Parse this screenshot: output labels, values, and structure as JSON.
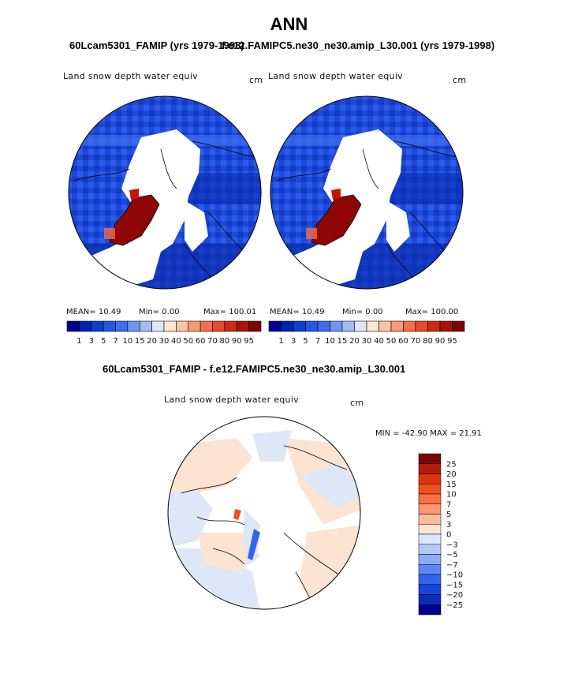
{
  "title": "ANN",
  "panels": [
    {
      "subtitle": "60Lcam5301_FAMIP (yrs 1979-1998)",
      "variable": "Land snow depth water equiv",
      "units": "cm",
      "mean": "MEAN=  10.49",
      "min": "Min=    0.00",
      "max": "Max= 100.01"
    },
    {
      "subtitle": "f.e12.FAMIPC5.ne30_ne30.amip_L30.001 (yrs 1979-1998)",
      "variable": "Land snow depth water equiv",
      "units": "cm",
      "mean": "MEAN=  10.49",
      "min": "Min=    0.00",
      "max": "Max= 100.00"
    }
  ],
  "diff_panel": {
    "subtitle": "60Lcam5301_FAMIP - f.e12.FAMIPC5.ne30_ne30.amip_L30.001",
    "variable": "Land snow depth water equiv",
    "units": "cm",
    "minmax": "MIN = -42.90 MAX =  21.91"
  },
  "colorbar_main": {
    "labels": [
      "1",
      "3",
      "5",
      "7",
      "10",
      "15",
      "20",
      "30",
      "40",
      "50",
      "60",
      "70",
      "80",
      "90",
      "95"
    ],
    "colors": [
      "#00008f",
      "#0022b0",
      "#0a3fd0",
      "#2357e6",
      "#3c6ef0",
      "#6e95f2",
      "#a4bcf5",
      "#dde7f8",
      "#fde6d6",
      "#fbc3a6",
      "#f89a72",
      "#f3704a",
      "#e84a2c",
      "#cf2a15",
      "#aa1408",
      "#7d0404"
    ]
  },
  "colorbar_diff": {
    "labels": [
      "25",
      "20",
      "15",
      "10",
      "7",
      "5",
      "3",
      "0",
      "−3",
      "−5",
      "−7",
      "−10",
      "−15",
      "−20",
      "−25"
    ],
    "colors": [
      "#7d0404",
      "#b51a0b",
      "#d83412",
      "#ee5020",
      "#f77145",
      "#fa9670",
      "#fbbc9c",
      "#fde3d2",
      "#dde7f8",
      "#b4c9f3",
      "#8eaaf1",
      "#5f86ee",
      "#3662ea",
      "#1a44d8",
      "#0b2db8",
      "#00008f"
    ]
  }
}
